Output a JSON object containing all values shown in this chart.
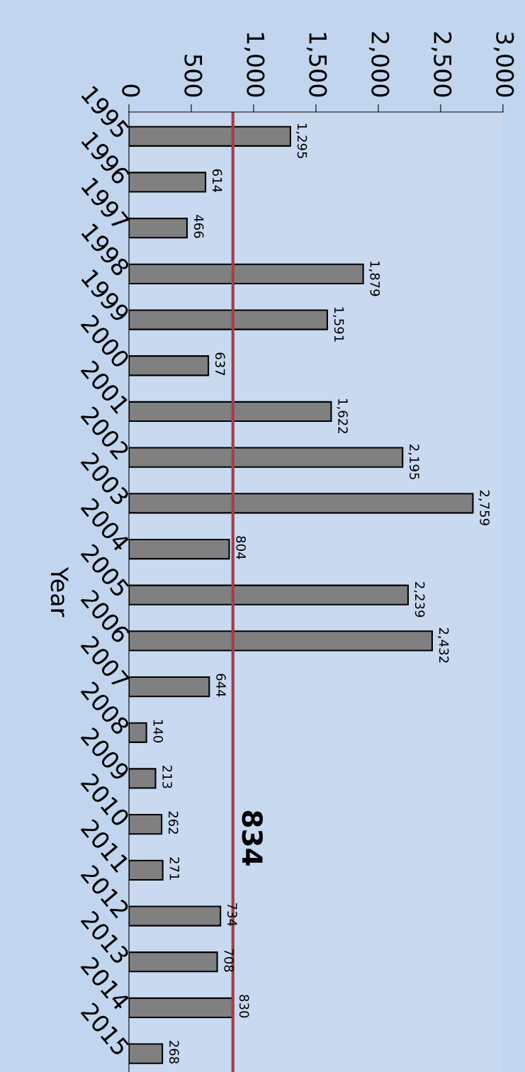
{
  "chart_data": {
    "type": "bar",
    "orientation": "horizontal",
    "ylabel": "Year",
    "categories": [
      "1995",
      "1996",
      "1997",
      "1998",
      "1999",
      "2000",
      "2001",
      "2002",
      "2003",
      "2004",
      "2005",
      "2006",
      "2007",
      "2008",
      "2009",
      "2010",
      "2011",
      "2012",
      "2013",
      "2014",
      "2015"
    ],
    "values": [
      1295,
      614,
      466,
      1879,
      1591,
      637,
      1622,
      2195,
      2759,
      804,
      2239,
      2432,
      644,
      140,
      213,
      262,
      271,
      734,
      708,
      830,
      268
    ],
    "value_labels": [
      "1,295",
      "614",
      "466",
      "1,879",
      "1,591",
      "637",
      "1,622",
      "2,195",
      "2,759",
      "804",
      "2,239",
      "2,432",
      "644",
      "140",
      "213",
      "262",
      "271",
      "734",
      "708",
      "830",
      "268"
    ],
    "color": "#808080",
    "xlim": [
      0,
      3000
    ],
    "xticks": [
      0,
      500,
      {
        "value": 1000,
        "label": "1,000"
      },
      {
        "value": 1500,
        "label": "1,500"
      },
      {
        "value": 2000,
        "label": "2,000"
      },
      {
        "value": 2500,
        "label": "2,500"
      },
      {
        "value": 3000,
        "label": "3,000"
      }
    ],
    "ref_lines": [
      {
        "axis": "x",
        "value": 834,
        "label": "834",
        "color": "#a0404a"
      }
    ],
    "grid": false,
    "legend": false
  }
}
